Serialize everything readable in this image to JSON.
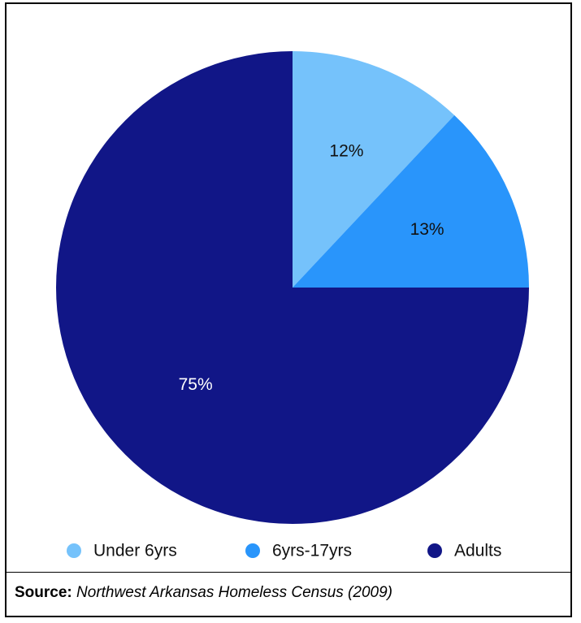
{
  "chart_data": {
    "type": "pie",
    "categories": [
      "Under 6yrs",
      "6yrs-17yrs",
      "Adults"
    ],
    "values": [
      12,
      13,
      75
    ],
    "value_labels": [
      "12%",
      "13%",
      "75%"
    ],
    "colors": [
      "#75c2fb",
      "#2995fb",
      "#111687"
    ],
    "label_colors": [
      "#111111",
      "#111111",
      "#ffffff"
    ],
    "title": "",
    "legend_position": "bottom",
    "start_angle": "12 o'clock",
    "direction": "clockwise"
  },
  "source": {
    "prefix": "Source:",
    "text": "Northwest Arkansas Homeless Census (2009)"
  }
}
